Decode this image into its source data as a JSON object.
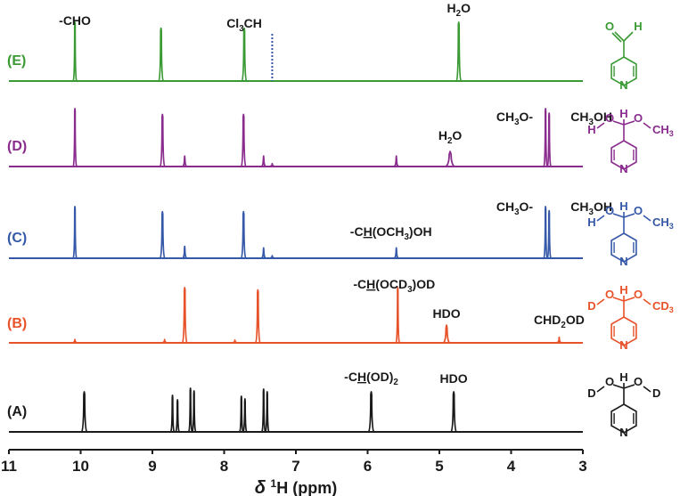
{
  "colors": {
    "E": "#3a9a34",
    "D": "#8a2b8e",
    "C": "#3558a8",
    "B": "#e8522a",
    "A": "#1a1a1a",
    "axis": "#1a1a1a",
    "highlight": "#c9cde3",
    "cl3ch_marker": "#3558a8"
  },
  "chart_data": {
    "type": "line",
    "title": "",
    "subtitle": "",
    "xlabel_parts": [
      "δ",
      "1",
      "H (ppm)"
    ],
    "xlim": [
      11,
      3
    ],
    "x_ticks": [
      "11",
      "10",
      "9",
      "8",
      "7",
      "6",
      "5",
      "4",
      "3"
    ],
    "highlight_band_ppm": [
      5.5,
      5.64
    ],
    "series": [
      {
        "id": "E",
        "label": "(E)",
        "peaks": [
          {
            "ppm": 10.08,
            "height": 1.0
          },
          {
            "ppm": 8.88,
            "height": 0.9,
            "width": 0.02
          },
          {
            "ppm": 7.72,
            "height": 0.9,
            "width": 0.02
          },
          {
            "ppm": 4.73,
            "height": 1.0,
            "width": 0.02
          }
        ],
        "dotted_marker_ppm": 7.33,
        "annotations": [
          {
            "ppm": 10.08,
            "text": "-CHO"
          },
          {
            "ppm": 7.72,
            "parts": [
              "Cl",
              "3",
              "CH"
            ]
          },
          {
            "ppm": 4.73,
            "parts": [
              "H",
              "2",
              "O"
            ]
          }
        ]
      },
      {
        "id": "D",
        "label": "(D)",
        "peaks": [
          {
            "ppm": 10.08,
            "height": 1.0
          },
          {
            "ppm": 8.86,
            "height": 0.9,
            "width": 0.02
          },
          {
            "ppm": 8.55,
            "height": 0.18
          },
          {
            "ppm": 7.73,
            "height": 0.9,
            "width": 0.02
          },
          {
            "ppm": 7.45,
            "height": 0.18
          },
          {
            "ppm": 7.33,
            "height": 0.05
          },
          {
            "ppm": 5.6,
            "height": 0.18
          },
          {
            "ppm": 4.85,
            "height": 0.26,
            "width": 0.05
          },
          {
            "ppm": 3.52,
            "height": 1.0
          },
          {
            "ppm": 3.47,
            "height": 0.92
          }
        ],
        "annotations": [
          {
            "ppm": 4.85,
            "parts": [
              "H",
              "2",
              "O"
            ]
          },
          {
            "ppm": 3.62,
            "parts": [
              "CH",
              "3",
              "O-"
            ]
          },
          {
            "ppm": 3.22,
            "parts": [
              "CH",
              "3",
              "OH"
            ]
          }
        ]
      },
      {
        "id": "C",
        "label": "(C)",
        "peaks": [
          {
            "ppm": 10.08,
            "height": 1.0
          },
          {
            "ppm": 8.86,
            "height": 0.9,
            "width": 0.02
          },
          {
            "ppm": 8.55,
            "height": 0.23
          },
          {
            "ppm": 7.73,
            "height": 0.9,
            "width": 0.02
          },
          {
            "ppm": 7.45,
            "height": 0.2
          },
          {
            "ppm": 7.33,
            "height": 0.05
          },
          {
            "ppm": 5.6,
            "height": 0.2
          },
          {
            "ppm": 3.52,
            "height": 1.0
          },
          {
            "ppm": 3.47,
            "height": 0.92
          }
        ],
        "annotations": [
          {
            "ppm": 5.6,
            "parts": [
              "-C",
              "H",
              "(OCH",
              "3",
              ")OH"
            ]
          },
          {
            "ppm": 3.62,
            "parts": [
              "CH",
              "3",
              "O-"
            ]
          },
          {
            "ppm": 3.22,
            "parts": [
              "CH",
              "3",
              "OH"
            ]
          }
        ]
      },
      {
        "id": "B",
        "label": "(B)",
        "peaks": [
          {
            "ppm": 10.08,
            "height": 0.06
          },
          {
            "ppm": 8.83,
            "height": 0.06
          },
          {
            "ppm": 8.55,
            "height": 1.0,
            "width": 0.02
          },
          {
            "ppm": 7.85,
            "height": 0.05
          },
          {
            "ppm": 7.53,
            "height": 0.96,
            "width": 0.02
          },
          {
            "ppm": 5.58,
            "height": 1.0
          },
          {
            "ppm": 4.9,
            "height": 0.32,
            "width": 0.03
          },
          {
            "ppm": 3.33,
            "height": 0.1
          }
        ],
        "annotations": [
          {
            "ppm": 5.58,
            "parts": [
              "-C",
              "H",
              "(OCD",
              "3",
              ")OD"
            ]
          },
          {
            "ppm": 4.9,
            "text": "HDO"
          },
          {
            "ppm": 3.33,
            "parts": [
              "CHD",
              "2",
              "OD"
            ]
          }
        ]
      },
      {
        "id": "A",
        "label": "(A)",
        "peaks": [
          {
            "ppm": 9.95,
            "height": 0.9,
            "width": 0.025
          },
          {
            "ppm": 8.72,
            "height": 0.82
          },
          {
            "ppm": 8.65,
            "height": 0.72
          },
          {
            "ppm": 8.47,
            "height": 0.98
          },
          {
            "ppm": 8.42,
            "height": 0.92
          },
          {
            "ppm": 7.76,
            "height": 0.8
          },
          {
            "ppm": 7.71,
            "height": 0.74
          },
          {
            "ppm": 7.45,
            "height": 0.96
          },
          {
            "ppm": 7.4,
            "height": 0.9
          },
          {
            "ppm": 5.95,
            "height": 0.9,
            "width": 0.025
          },
          {
            "ppm": 4.8,
            "height": 0.9,
            "width": 0.025
          }
        ],
        "annotations": [
          {
            "ppm": 5.95,
            "parts": [
              "-C",
              "H",
              "(OD)",
              "2",
              ""
            ]
          },
          {
            "ppm": 4.8,
            "text": "HDO"
          }
        ]
      }
    ]
  },
  "structures": [
    {
      "id": "E",
      "aldehyde_o": "O",
      "aldehyde_h": "H",
      "ring_n": "N"
    },
    {
      "id": "D",
      "left_h": "H",
      "center_h": "H",
      "o1": "O",
      "o2": "O",
      "me": "CH",
      "me_sub": "3",
      "ring_n": "N"
    },
    {
      "id": "C",
      "left_h": "H",
      "center_h": "H",
      "o1": "O",
      "o2": "O",
      "me": "CH",
      "me_sub": "3",
      "ring_n": "N"
    },
    {
      "id": "B",
      "left_h": "D",
      "center_h": "H",
      "o1": "O",
      "o2": "O",
      "me": "CD",
      "me_sub": "3",
      "ring_n": "N"
    },
    {
      "id": "A",
      "left_h": "D",
      "center_h": "H",
      "o1": "O",
      "o2": "O",
      "me": "D",
      "me_sub": "",
      "ring_n": "N"
    }
  ]
}
